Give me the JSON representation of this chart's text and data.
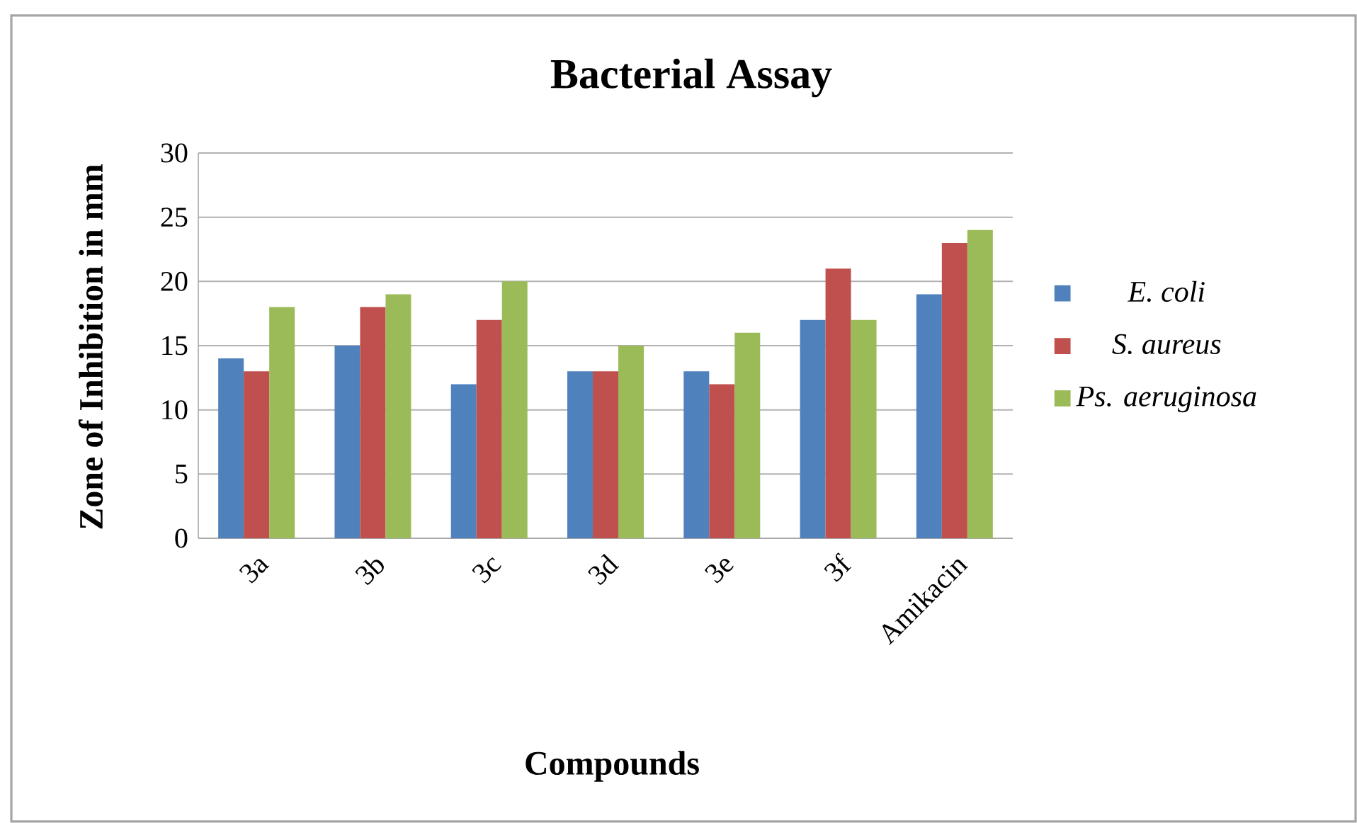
{
  "chart_data": {
    "type": "bar",
    "title": "Bacterial Assay",
    "xlabel": "Compounds",
    "ylabel": "Zone of Inhibition in mm",
    "categories": [
      "3a",
      "3b",
      "3c",
      "3d",
      "3e",
      "3f",
      "Amikacin"
    ],
    "series": [
      {
        "name": "E. coli",
        "color": "#4f81bd",
        "values": [
          14,
          15,
          12,
          13,
          13,
          17,
          19
        ]
      },
      {
        "name": "S. aureus",
        "color": "#c0504d",
        "values": [
          13,
          18,
          17,
          13,
          12,
          21,
          23
        ]
      },
      {
        "name": "Ps.  aeruginosa",
        "color": "#9bbb59",
        "values": [
          18,
          19,
          20,
          15,
          16,
          17,
          24
        ]
      }
    ],
    "ylim": [
      0,
      30
    ],
    "yticks": [
      0,
      5,
      10,
      15,
      20,
      25,
      30
    ],
    "grid": "y",
    "legend": "right"
  }
}
